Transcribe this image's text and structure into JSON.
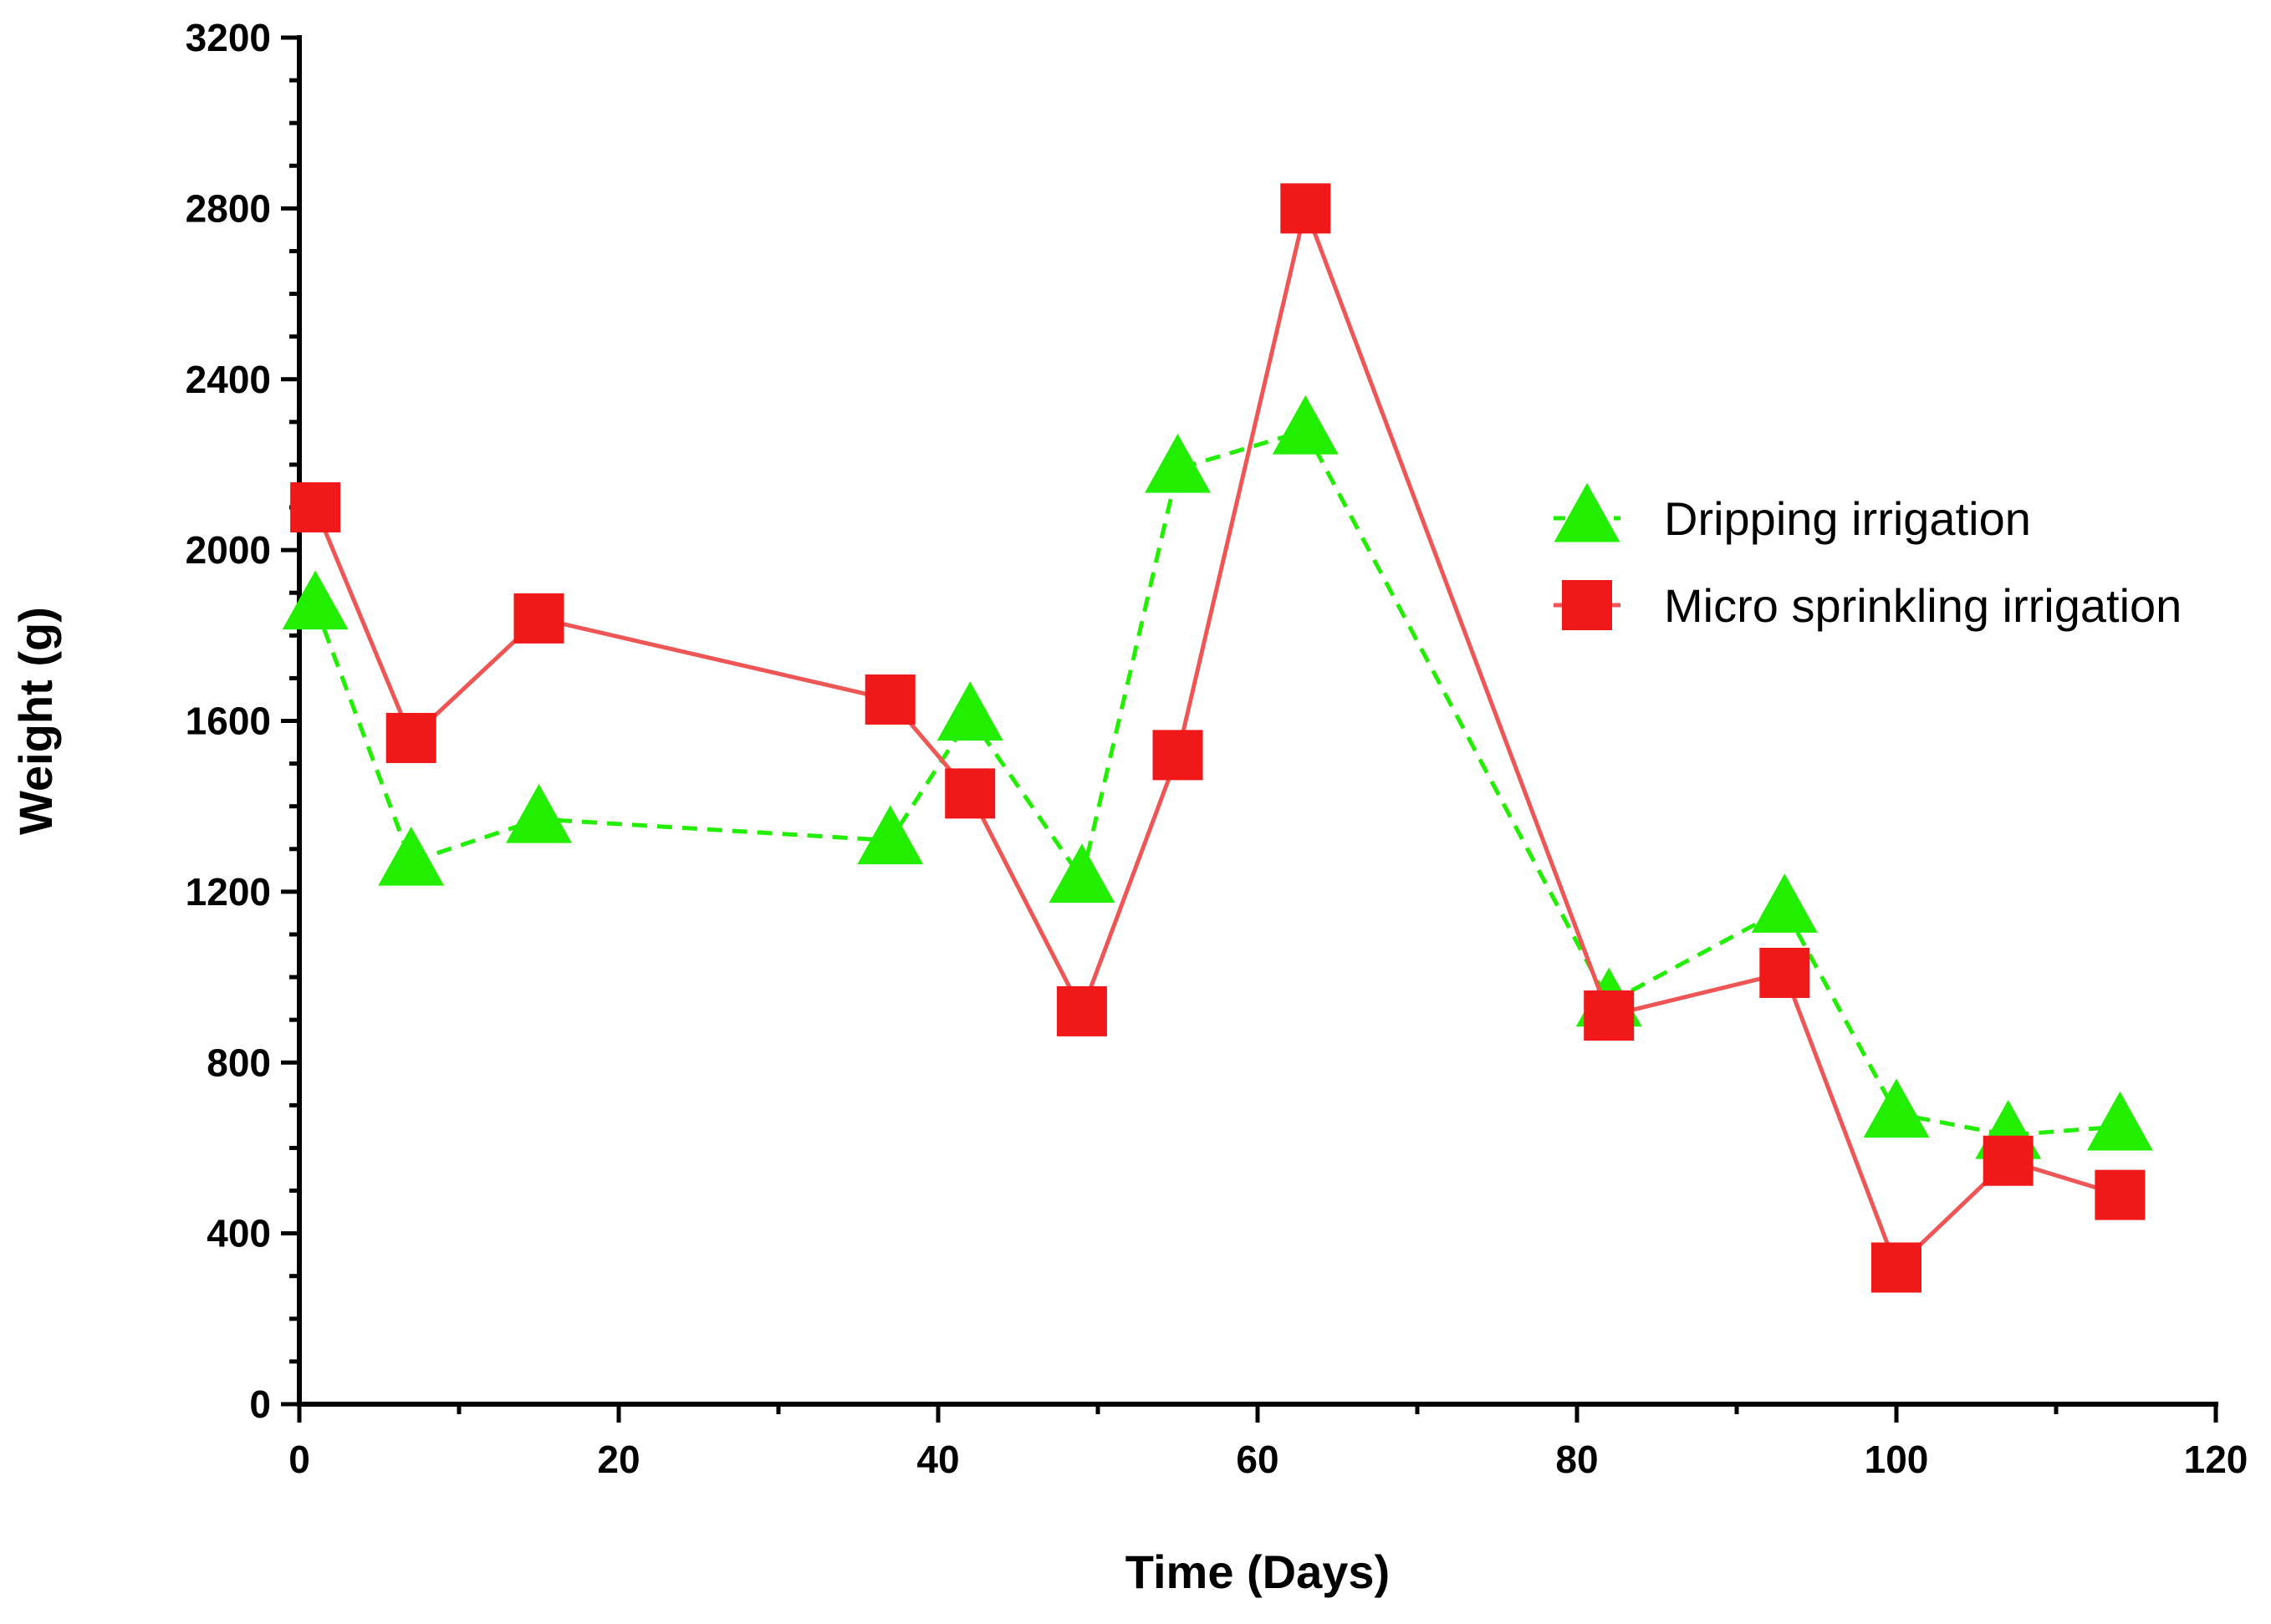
{
  "chart_data": {
    "type": "line",
    "title": "",
    "xlabel": "Time (Days)",
    "ylabel": "Weight (g)",
    "xlim": [
      0,
      120
    ],
    "ylim": [
      0,
      3200
    ],
    "xticks": [
      0,
      20,
      40,
      60,
      80,
      100,
      120
    ],
    "yticks": [
      0,
      400,
      800,
      1200,
      1600,
      2000,
      2400,
      2800,
      3200
    ],
    "grid": false,
    "legend_position": "right-center",
    "series": [
      {
        "name": "Dripping irrigation",
        "marker": "triangle",
        "line_style": "dashed",
        "color": "#22EE00",
        "x": [
          1,
          7,
          15,
          37,
          42,
          49,
          55,
          63,
          82,
          93,
          100,
          107,
          114
        ],
        "values": [
          1870,
          1270,
          1370,
          1320,
          1610,
          1230,
          2190,
          2280,
          940,
          1160,
          680,
          630,
          650
        ]
      },
      {
        "name": "Micro sprinkling irrigation",
        "marker": "square",
        "line_style": "solid",
        "color": "#F01818",
        "line_color": "#EE5555",
        "x": [
          1,
          7,
          15,
          37,
          42,
          49,
          55,
          63,
          82,
          93,
          100,
          107,
          114
        ],
        "values": [
          2100,
          1560,
          1840,
          1650,
          1430,
          920,
          1520,
          2800,
          910,
          1010,
          320,
          570,
          490
        ]
      }
    ]
  }
}
